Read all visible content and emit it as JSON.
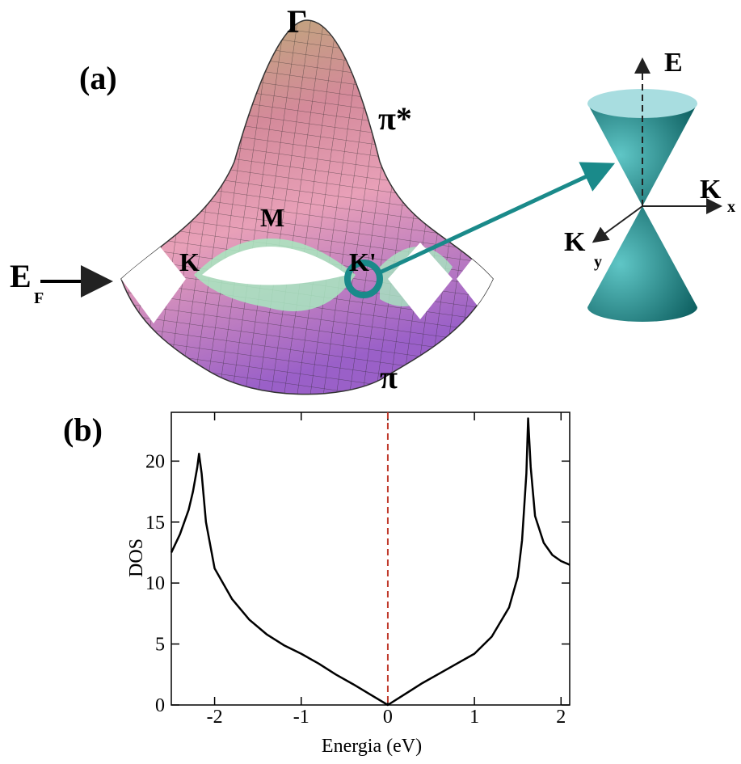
{
  "panel_a": {
    "panel_label": "(a)",
    "gamma": "Γ",
    "pi_star": "π*",
    "m": "M",
    "k": "K",
    "k_prime": "K'",
    "e": "E",
    "f": "F",
    "pi": "π",
    "cone": {
      "e": "E",
      "kx": "K",
      "x": "x",
      "ky": "K",
      "y": "y"
    }
  },
  "chart_data": {
    "type": "line",
    "panel_label": "(b)",
    "x_label": "Energia (eV)",
    "y_label": "DOS",
    "x": [
      -2.5,
      -2.4,
      -2.3,
      -2.25,
      -2.2,
      -2.18,
      -2.15,
      -2.1,
      -2.0,
      -1.8,
      -1.6,
      -1.4,
      -1.2,
      -1.0,
      -0.8,
      -0.6,
      -0.4,
      -0.2,
      0,
      0.2,
      0.4,
      0.6,
      0.8,
      1.0,
      1.2,
      1.4,
      1.5,
      1.55,
      1.6,
      1.62,
      1.65,
      1.7,
      1.8,
      1.9,
      2.0,
      2.1
    ],
    "series": [
      {
        "color": "#000000",
        "values": [
          12.5,
          14.0,
          16.0,
          17.5,
          19.5,
          20.6,
          19.0,
          15.0,
          11.2,
          8.7,
          7.0,
          5.8,
          4.9,
          4.2,
          3.4,
          2.5,
          1.7,
          0.85,
          0,
          0.9,
          1.8,
          2.6,
          3.4,
          4.2,
          5.6,
          8.0,
          10.5,
          13.5,
          19.0,
          23.5,
          19.5,
          15.5,
          13.3,
          12.3,
          11.8,
          11.5
        ]
      }
    ],
    "vline": {
      "x": 0,
      "color": "#c0392b"
    },
    "xlim": [
      -2.5,
      2.1
    ],
    "xticks": [
      -2,
      -1,
      0,
      1,
      2
    ],
    "ylim": [
      0,
      24
    ],
    "yticks": [
      0,
      5,
      10,
      15,
      20
    ]
  }
}
